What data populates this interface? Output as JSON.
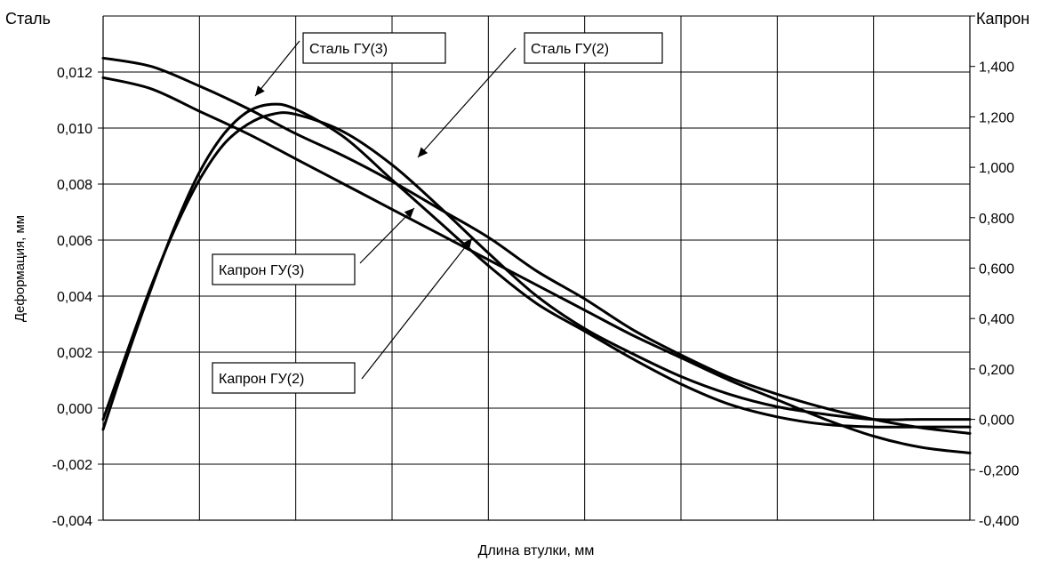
{
  "chart_data": {
    "type": "line",
    "title": "",
    "xlabel": "Длина втулки, мм",
    "ylabel": "Деформация, мм",
    "y_left_title": "Сталь",
    "y_right_title": "Капрон",
    "ylim_left": [
      -0.004,
      0.014
    ],
    "ylim_right": [
      -0.4,
      1.6
    ],
    "y_left_ticks": [
      "-0,004",
      "-0,002",
      "0,000",
      "0,002",
      "0,004",
      "0,006",
      "0,008",
      "0,010",
      "0,012"
    ],
    "y_right_ticks": [
      "-0,400",
      "-0,200",
      "0,000",
      "0,200",
      "0,400",
      "0,600",
      "0,800",
      "1,000",
      "1,200",
      "1,400"
    ],
    "xlim": [
      0,
      9
    ],
    "x_gridlines": 9,
    "grid": true,
    "legend": "none",
    "annotations": [
      "Сталь ГУ(3)",
      "Сталь ГУ(2)",
      "Капрон ГУ(3)",
      "Капрон ГУ(2)"
    ],
    "series": [
      {
        "name": "Сталь ГУ(3)",
        "axis": "left",
        "x": [
          0,
          0.5,
          1,
          1.5,
          2,
          2.5,
          3,
          3.5,
          4,
          4.5,
          5,
          5.5,
          6,
          6.5,
          7,
          7.5,
          8,
          8.5,
          9
        ],
        "values": [
          0.0125,
          0.0122,
          0.0115,
          0.0107,
          0.0098,
          0.009,
          0.0081,
          0.0071,
          0.0061,
          0.0049,
          0.0039,
          0.0028,
          0.0019,
          0.0011,
          0.0005,
          0.0,
          -0.0004,
          -0.0007,
          -0.0009
        ]
      },
      {
        "name": "Сталь ГУ(2)",
        "axis": "left",
        "x": [
          0,
          0.5,
          1,
          1.5,
          2,
          2.5,
          3,
          3.5,
          4,
          4.5,
          5,
          5.5,
          6,
          6.5,
          7,
          7.5,
          8,
          8.5,
          9
        ],
        "values": [
          0.0118,
          0.0114,
          0.0106,
          0.0098,
          0.0089,
          0.008,
          0.0071,
          0.0062,
          0.0053,
          0.0044,
          0.0035,
          0.0026,
          0.0018,
          0.001,
          0.0003,
          -0.0004,
          -0.001,
          -0.0014,
          -0.0016
        ]
      },
      {
        "name": "Капрон ГУ(3)",
        "axis": "right",
        "x": [
          0,
          0.25,
          0.5,
          0.75,
          1,
          1.25,
          1.5,
          1.75,
          2,
          2.5,
          3,
          3.5,
          4,
          4.5,
          5,
          5.5,
          6,
          6.5,
          7,
          7.5,
          8,
          8.5,
          9
        ],
        "values": [
          -0.04,
          0.25,
          0.52,
          0.77,
          0.98,
          1.13,
          1.22,
          1.25,
          1.23,
          1.12,
          0.95,
          0.78,
          0.61,
          0.46,
          0.35,
          0.24,
          0.14,
          0.06,
          0.01,
          -0.02,
          -0.03,
          -0.03,
          -0.03
        ]
      },
      {
        "name": "Капрон ГУ(2)",
        "axis": "right",
        "x": [
          0,
          0.25,
          0.5,
          0.75,
          1,
          1.25,
          1.5,
          1.75,
          2,
          2.5,
          3,
          3.5,
          4,
          4.5,
          5,
          5.5,
          6,
          6.5,
          7,
          7.5,
          8,
          8.5,
          9
        ],
        "values": [
          0.0,
          0.27,
          0.53,
          0.76,
          0.95,
          1.09,
          1.17,
          1.21,
          1.21,
          1.14,
          1.01,
          0.84,
          0.66,
          0.49,
          0.36,
          0.26,
          0.17,
          0.1,
          0.05,
          0.02,
          0.0,
          0.0,
          0.0
        ]
      }
    ]
  }
}
